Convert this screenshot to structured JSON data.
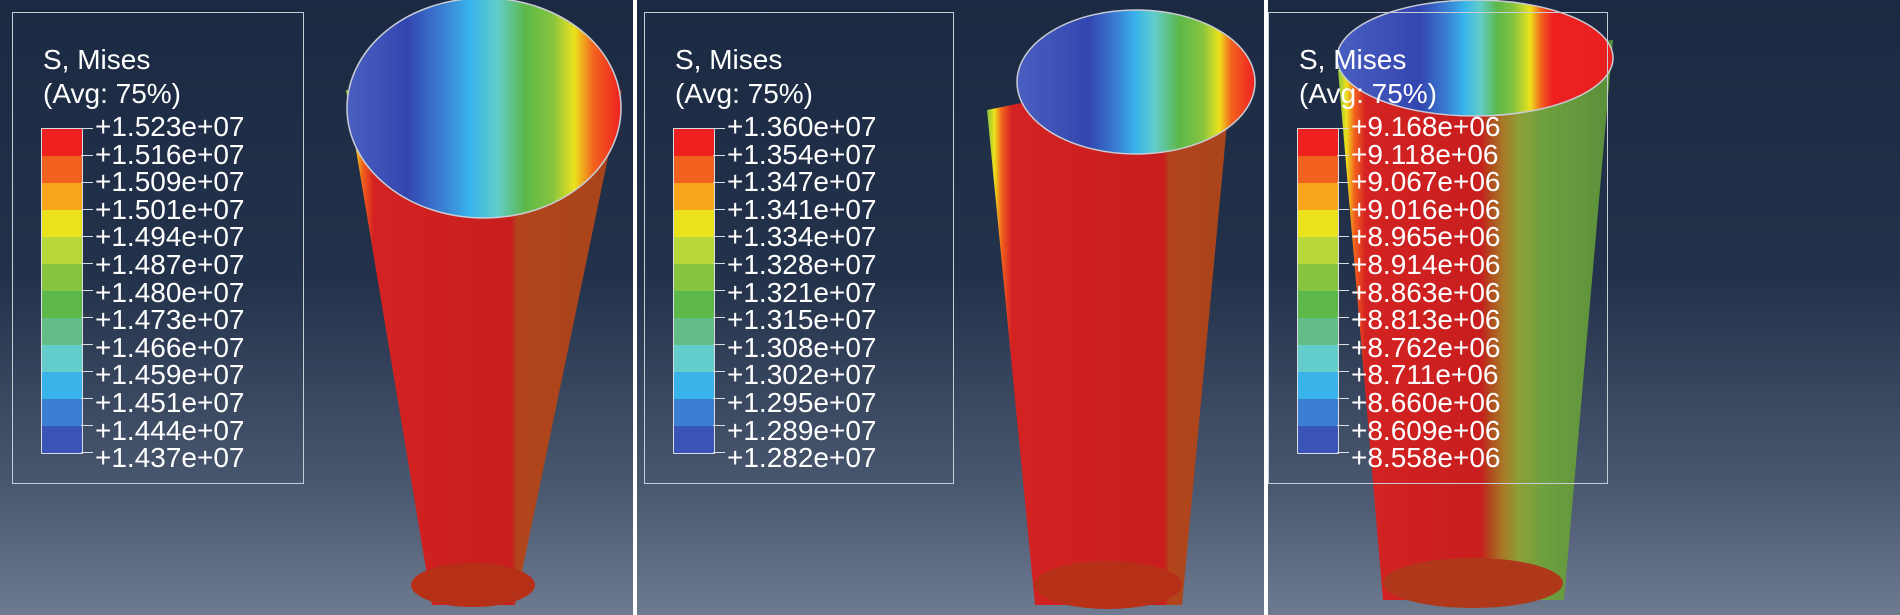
{
  "colorbar": [
    "#ee2020",
    "#f2621e",
    "#f7a51a",
    "#ece21c",
    "#b8d83a",
    "#86c440",
    "#5cb849",
    "#62bd87",
    "#62cdcb",
    "#38b4ea",
    "#3a7fd3",
    "#3a55b6"
  ],
  "panels": [
    {
      "legend": {
        "title": "S, Mises",
        "subtitle": "(Avg: 75%)",
        "values": [
          "+1.523e+07",
          "+1.516e+07",
          "+1.509e+07",
          "+1.501e+07",
          "+1.494e+07",
          "+1.487e+07",
          "+1.480e+07",
          "+1.473e+07",
          "+1.466e+07",
          "+1.459e+07",
          "+1.451e+07",
          "+1.444e+07",
          "+1.437e+07"
        ]
      }
    },
    {
      "legend": {
        "title": "S, Mises",
        "subtitle": "(Avg: 75%)",
        "values": [
          "+1.360e+07",
          "+1.354e+07",
          "+1.347e+07",
          "+1.341e+07",
          "+1.334e+07",
          "+1.328e+07",
          "+1.321e+07",
          "+1.315e+07",
          "+1.308e+07",
          "+1.302e+07",
          "+1.295e+07",
          "+1.289e+07",
          "+1.282e+07"
        ]
      }
    },
    {
      "legend": {
        "title": "S, Mises",
        "subtitle": "(Avg: 75%)",
        "values": [
          "+9.168e+06",
          "+9.118e+06",
          "+9.067e+06",
          "+9.016e+06",
          "+8.965e+06",
          "+8.914e+06",
          "+8.863e+06",
          "+8.813e+06",
          "+8.762e+06",
          "+8.711e+06",
          "+8.660e+06",
          "+8.609e+06",
          "+8.558e+06"
        ]
      }
    }
  ]
}
